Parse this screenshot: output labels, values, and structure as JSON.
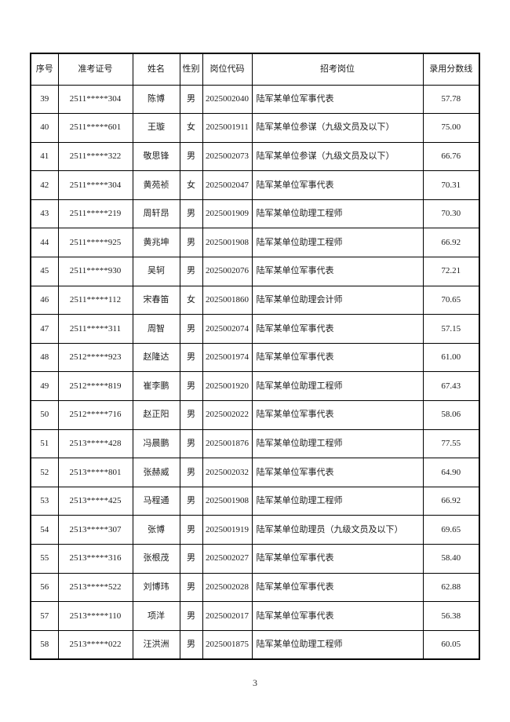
{
  "page": {
    "number": "3"
  },
  "table": {
    "headers": [
      "序号",
      "准考证号",
      "姓名",
      "性别",
      "岗位代码",
      "招考岗位",
      "录用分数线"
    ],
    "rows": [
      [
        "39",
        "2511*****304",
        "陈博",
        "男",
        "2025002040",
        "陆军某单位军事代表",
        "57.78"
      ],
      [
        "40",
        "2511*****601",
        "王璇",
        "女",
        "2025001911",
        "陆军某单位参谋（九级文员及以下）",
        "75.00"
      ],
      [
        "41",
        "2511*****322",
        "敬思锋",
        "男",
        "2025002073",
        "陆军某单位参谋（九级文员及以下）",
        "66.76"
      ],
      [
        "42",
        "2511*****304",
        "黄苑祯",
        "女",
        "2025002047",
        "陆军某单位军事代表",
        "70.31"
      ],
      [
        "43",
        "2511*****219",
        "周轩昂",
        "男",
        "2025001909",
        "陆军某单位助理工程师",
        "70.30"
      ],
      [
        "44",
        "2511*****925",
        "黄兆坤",
        "男",
        "2025001908",
        "陆军某单位助理工程师",
        "66.92"
      ],
      [
        "45",
        "2511*****930",
        "吴轲",
        "男",
        "2025002076",
        "陆军某单位军事代表",
        "72.21"
      ],
      [
        "46",
        "2511*****112",
        "宋春笛",
        "女",
        "2025001860",
        "陆军某单位助理会计师",
        "70.65"
      ],
      [
        "47",
        "2511*****311",
        "周智",
        "男",
        "2025002074",
        "陆军某单位军事代表",
        "57.15"
      ],
      [
        "48",
        "2512*****923",
        "赵隆达",
        "男",
        "2025001974",
        "陆军某单位军事代表",
        "61.00"
      ],
      [
        "49",
        "2512*****819",
        "崔李鹏",
        "男",
        "2025001920",
        "陆军某单位助理工程师",
        "67.43"
      ],
      [
        "50",
        "2512*****716",
        "赵正阳",
        "男",
        "2025002022",
        "陆军某单位军事代表",
        "58.06"
      ],
      [
        "51",
        "2513*****428",
        "冯晨鹏",
        "男",
        "2025001876",
        "陆军某单位助理工程师",
        "77.55"
      ],
      [
        "52",
        "2513*****801",
        "张赫威",
        "男",
        "2025002032",
        "陆军某单位军事代表",
        "64.90"
      ],
      [
        "53",
        "2513*****425",
        "马程通",
        "男",
        "2025001908",
        "陆军某单位助理工程师",
        "66.92"
      ],
      [
        "54",
        "2513*****307",
        "张博",
        "男",
        "2025001919",
        "陆军某单位助理员（九级文员及以下）",
        "69.65"
      ],
      [
        "55",
        "2513*****316",
        "张根茂",
        "男",
        "2025002027",
        "陆军某单位军事代表",
        "58.40"
      ],
      [
        "56",
        "2513*****522",
        "刘博玮",
        "男",
        "2025002028",
        "陆军某单位军事代表",
        "62.88"
      ],
      [
        "57",
        "2513*****110",
        "项洋",
        "男",
        "2025002017",
        "陆军某单位军事代表",
        "56.38"
      ],
      [
        "58",
        "2513*****022",
        "汪洪洲",
        "男",
        "2025001875",
        "陆军某单位助理工程师",
        "60.05"
      ]
    ]
  }
}
